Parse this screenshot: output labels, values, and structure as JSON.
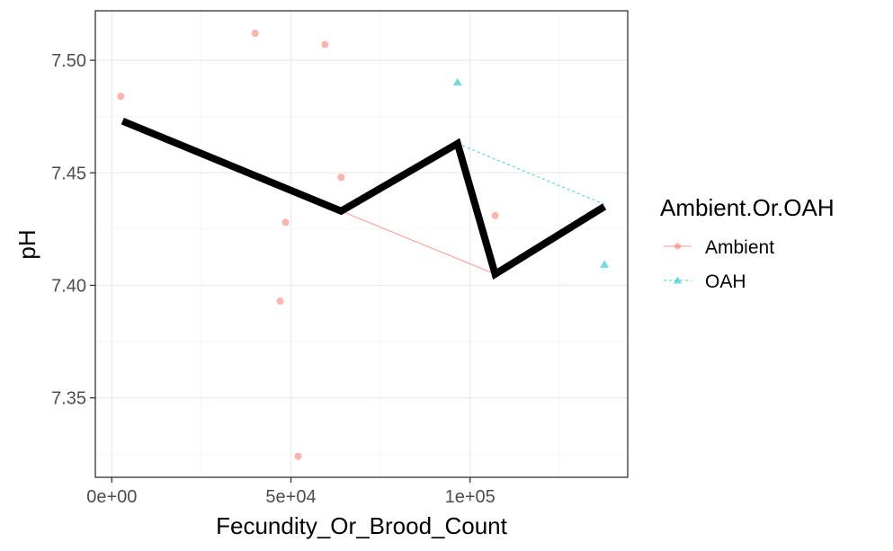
{
  "chart_data": {
    "type": "scatter",
    "xlabel": "Fecundity_Or_Brood_Count",
    "ylabel": "pH",
    "xlim": [
      -4600,
      144000
    ],
    "ylim": [
      7.3147,
      7.522
    ],
    "x_ticks": [
      0,
      50000,
      100000
    ],
    "x_tick_labels": [
      "0e+00",
      "5e+04",
      "1e+05"
    ],
    "y_ticks": [
      7.35,
      7.4,
      7.45,
      7.5
    ],
    "y_tick_labels": [
      "7.35",
      "7.40",
      "7.45",
      "7.50"
    ],
    "grid": true,
    "legend": {
      "title": "Ambient.Or.OAH",
      "position": "right",
      "entries": [
        "Ambient",
        "OAH"
      ]
    },
    "series": [
      {
        "name": "Ambient",
        "color": "#F8766D",
        "marker": "circle",
        "line_style": "solid",
        "points": [
          {
            "x": 2500,
            "y": 7.484
          },
          {
            "x": 40000,
            "y": 7.512
          },
          {
            "x": 59500,
            "y": 7.507
          },
          {
            "x": 64000,
            "y": 7.448
          },
          {
            "x": 48500,
            "y": 7.428
          },
          {
            "x": 47000,
            "y": 7.393
          },
          {
            "x": 52000,
            "y": 7.324
          },
          {
            "x": 107000,
            "y": 7.431
          }
        ],
        "line": [
          {
            "x": 64000,
            "y": 7.433
          },
          {
            "x": 107000,
            "y": 7.405
          }
        ]
      },
      {
        "name": "OAH",
        "color": "#00BFC4",
        "marker": "triangle",
        "line_style": "dashed",
        "points": [
          {
            "x": 96500,
            "y": 7.49
          },
          {
            "x": 137500,
            "y": 7.409
          }
        ],
        "line": [
          {
            "x": 96500,
            "y": 7.463
          },
          {
            "x": 137500,
            "y": 7.436
          }
        ]
      }
    ],
    "overall_line": {
      "color": "#000000",
      "points": [
        {
          "x": 3000,
          "y": 7.473
        },
        {
          "x": 64000,
          "y": 7.433
        },
        {
          "x": 96500,
          "y": 7.463
        },
        {
          "x": 107000,
          "y": 7.405
        },
        {
          "x": 137500,
          "y": 7.435
        }
      ]
    }
  }
}
